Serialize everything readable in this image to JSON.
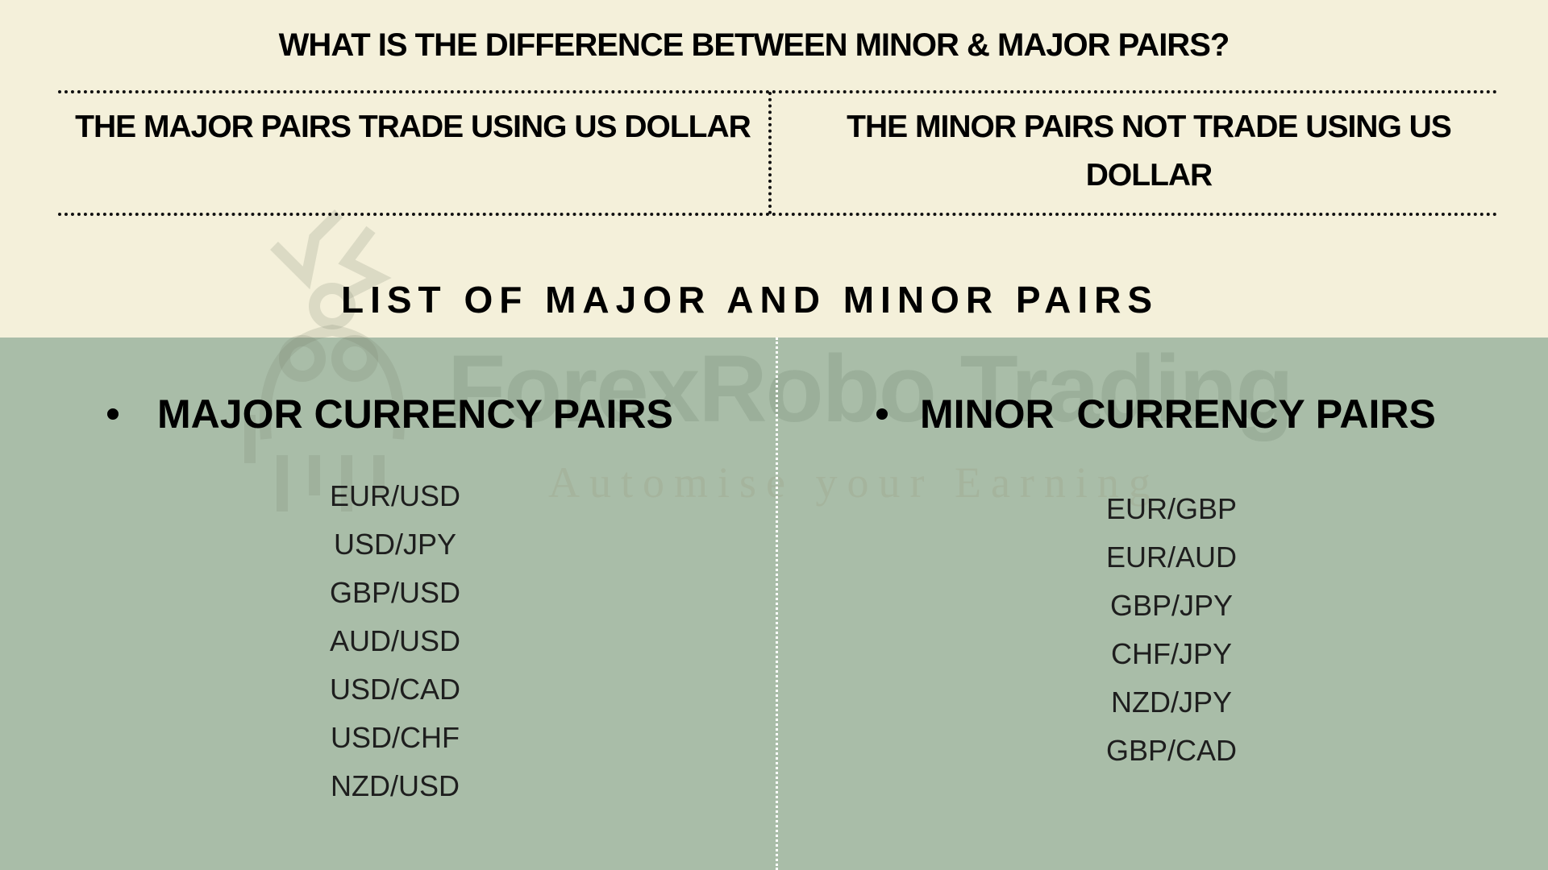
{
  "header": {
    "title": "WHAT IS THE DIFFERENCE BETWEEN MINOR & MAJOR PAIRS?",
    "major_desc": "THE MAJOR PAIRS TRADE USING US DOLLAR",
    "minor_desc": "THE MINOR PAIRS NOT TRADE USING US DOLLAR"
  },
  "list_title": "LIST OF MAJOR AND MINOR PAIRS",
  "major": {
    "heading": "MAJOR CURRENCY PAIRS",
    "pairs": [
      "EUR/USD",
      "USD/JPY",
      "GBP/USD",
      "AUD/USD",
      "USD/CAD",
      "USD/CHF",
      "NZD/USD"
    ]
  },
  "minor": {
    "heading": "MINOR  CURRENCY PAIRS",
    "pairs": [
      "EUR/GBP",
      "EUR/AUD",
      "GBP/JPY",
      "CHF/JPY",
      "NZD/JPY",
      "GBP/CAD"
    ]
  },
  "watermark": {
    "name": "ForexRobo Trading",
    "tagline": "Automise your Earning"
  },
  "colors": {
    "top_bg": "#f4f0da",
    "bottom_bg": "#a9bda8"
  }
}
